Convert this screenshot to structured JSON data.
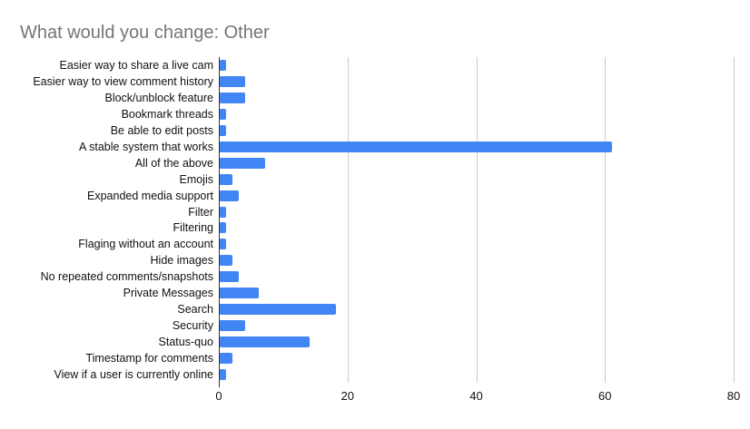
{
  "header": {
    "title": "What would you change: Other"
  },
  "chart_data": {
    "type": "bar",
    "orientation": "horizontal",
    "title": "What would you change: Other",
    "xlabel": "",
    "ylabel": "",
    "categories": [
      "Easier way to share a live cam",
      "Easier way to view comment history",
      "Block/unblock feature",
      "Bookmark threads",
      "Be able to edit posts",
      "A stable system that works",
      "All of the above",
      "Emojis",
      "Expanded media support",
      "Filter",
      "Filtering",
      "Flaging without an account",
      "Hide images",
      "No repeated comments/snapshots",
      "Private Messages",
      "Search",
      "Security",
      "Status-quo",
      "Timestamp for comments",
      "View if a user is currently online"
    ],
    "values": [
      1,
      4,
      4,
      1,
      1,
      61,
      7,
      2,
      3,
      1,
      1,
      1,
      2,
      3,
      6,
      18,
      4,
      14,
      2,
      1
    ],
    "xlim": [
      0,
      80
    ],
    "x_ticks": [
      0,
      20,
      40,
      60,
      80
    ],
    "grid": true,
    "legend": "none",
    "colors": {
      "bar": "#4285f4",
      "title": "#757575",
      "gridline": "#cccccc",
      "axis": "#333333",
      "label": "#111111",
      "tick_label": "#111111",
      "background": "#ffffff"
    }
  }
}
